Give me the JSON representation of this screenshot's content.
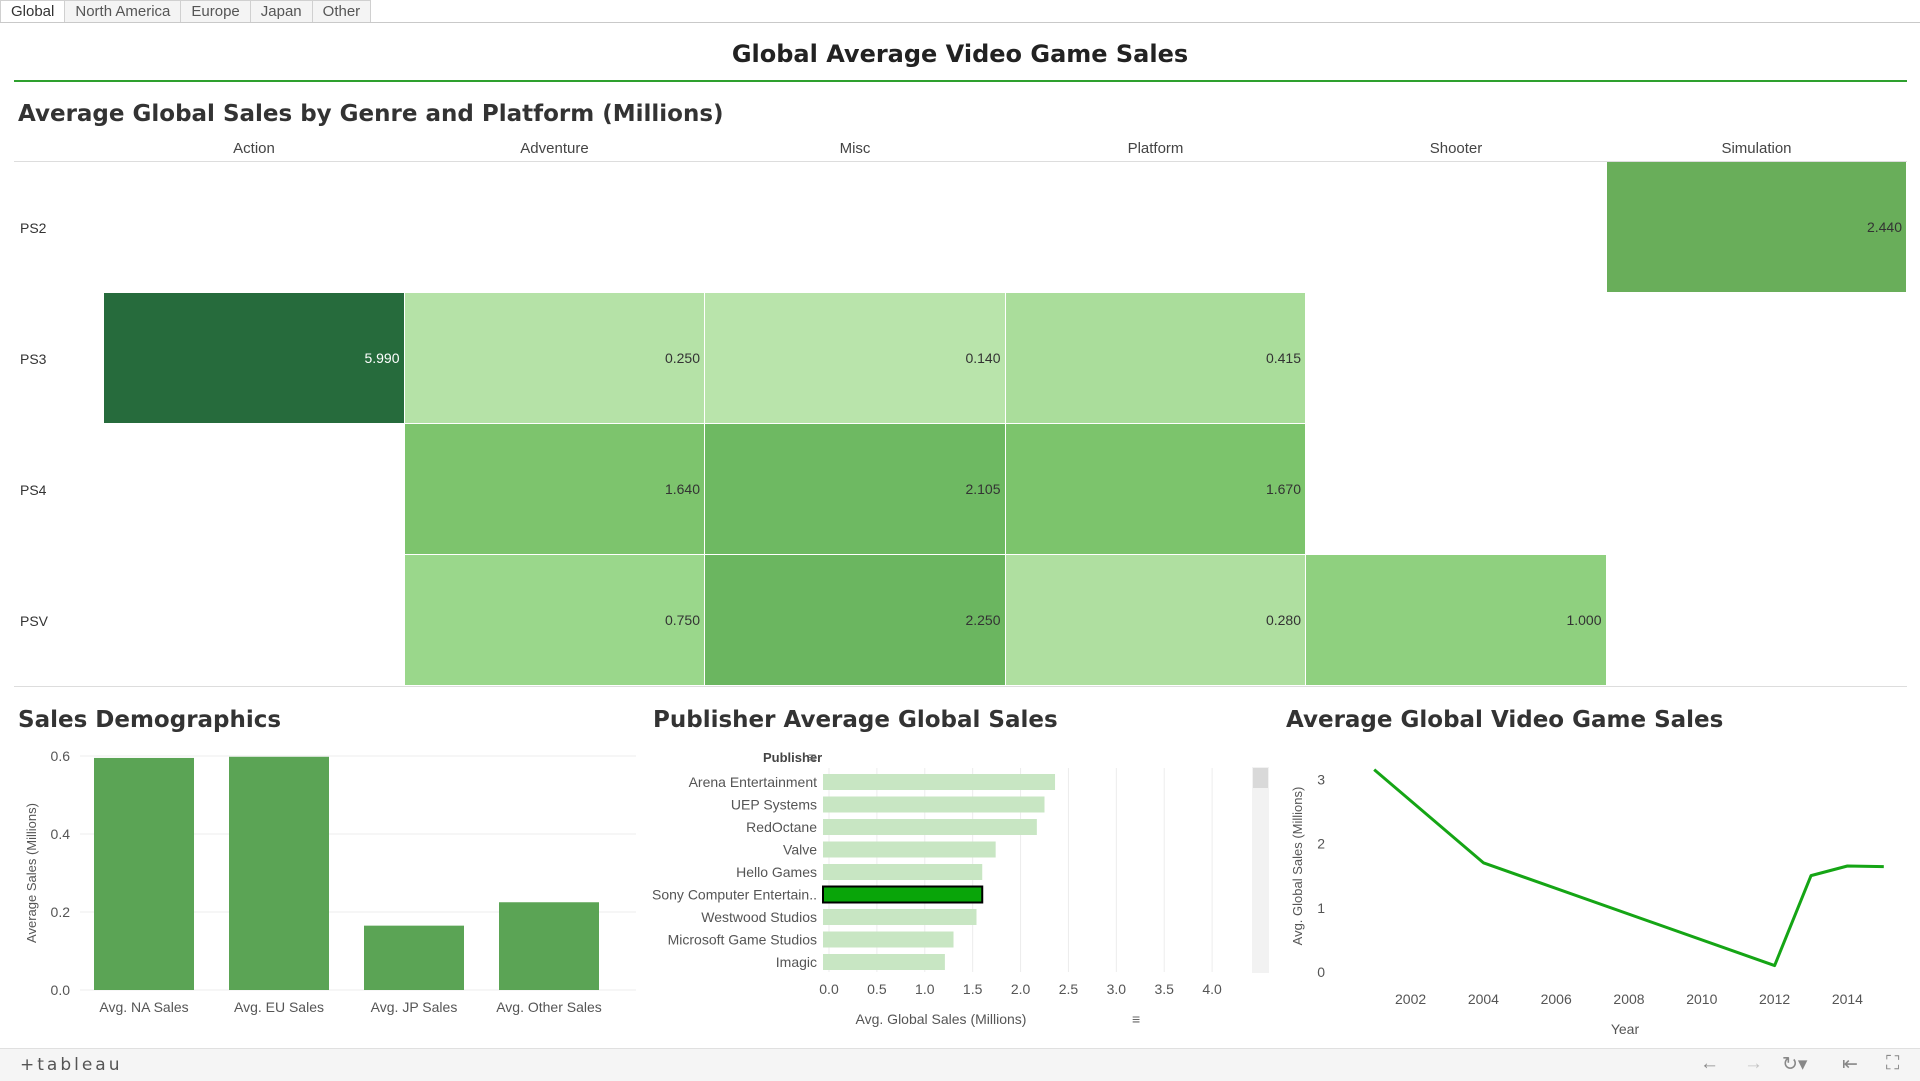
{
  "tabs": [
    {
      "label": "Global",
      "active": true
    },
    {
      "label": "North America",
      "active": false
    },
    {
      "label": "Europe",
      "active": false
    },
    {
      "label": "Japan",
      "active": false
    },
    {
      "label": "Other",
      "active": false
    }
  ],
  "dashboard_title": "Global Average Video Game Sales",
  "heatmap": {
    "title": "Average Global Sales by Genre and Platform (Millions)",
    "columns": [
      "Action",
      "Adventure",
      "Misc",
      "Platform",
      "Shooter",
      "Simulation"
    ],
    "rows": [
      "PS2",
      "PS3",
      "PS4",
      "PSV"
    ],
    "cells": [
      {
        "row": "PS2",
        "col": "Simulation",
        "value": "2.440",
        "color": "#69ae5a"
      },
      {
        "row": "PS3",
        "col": "Action",
        "value": "5.990",
        "color": "#266b3c"
      },
      {
        "row": "PS3",
        "col": "Adventure",
        "value": "0.250",
        "color": "#b5e2a7"
      },
      {
        "row": "PS3",
        "col": "Misc",
        "value": "0.140",
        "color": "#b9e4ab"
      },
      {
        "row": "PS3",
        "col": "Platform",
        "value": "0.415",
        "color": "#aadd9b"
      },
      {
        "row": "PS4",
        "col": "Adventure",
        "value": "1.640",
        "color": "#7dc46d"
      },
      {
        "row": "PS4",
        "col": "Misc",
        "value": "2.105",
        "color": "#6eb962"
      },
      {
        "row": "PS4",
        "col": "Platform",
        "value": "1.670",
        "color": "#7cc46c"
      },
      {
        "row": "PSV",
        "col": "Adventure",
        "value": "0.750",
        "color": "#9ad78b"
      },
      {
        "row": "PSV",
        "col": "Misc",
        "value": "2.250",
        "color": "#6bb660"
      },
      {
        "row": "PSV",
        "col": "Platform",
        "value": "0.280",
        "color": "#afdfa0"
      },
      {
        "row": "PSV",
        "col": "Shooter",
        "value": "1.000",
        "color": "#8fd07f"
      }
    ]
  },
  "demographics": {
    "title": "Sales Demographics"
  },
  "publisher": {
    "title": "Publisher Average Global Sales",
    "header": "Publisher"
  },
  "trend": {
    "title": "Average Global Video Game Sales"
  },
  "chart_data": [
    {
      "type": "bar",
      "title": "Sales Demographics",
      "categories": [
        "Avg. NA Sales",
        "Avg. EU Sales",
        "Avg. JP Sales",
        "Avg. Other Sales"
      ],
      "values": [
        0.595,
        0.598,
        0.165,
        0.225
      ],
      "ylabel": "Average Sales (Millions)",
      "xlabel": "",
      "ylim": [
        0,
        0.6
      ],
      "yticks": [
        "0.0",
        "0.2",
        "0.4",
        "0.6"
      ],
      "color": "#5ba455",
      "grid": true
    },
    {
      "type": "bar",
      "orientation": "horizontal",
      "title": "Publisher Average Global Sales",
      "categories": [
        "Arena Entertainment",
        "UEP Systems",
        "RedOctane",
        "Valve",
        "Hello Games",
        "Sony Computer Entertain..",
        "Westwood Studios",
        "Microsoft Game Studios",
        "Imagic"
      ],
      "values": [
        2.36,
        2.25,
        2.17,
        1.74,
        1.6,
        1.6,
        1.54,
        1.3,
        1.21
      ],
      "highlighted": "Sony Computer Entertain..",
      "xlabel": "Avg. Global Sales (Millions)",
      "ylabel": "Publisher",
      "xlim": [
        0,
        4.5
      ],
      "xticks": [
        "0.0",
        "0.5",
        "1.0",
        "1.5",
        "2.0",
        "2.5",
        "3.0",
        "3.5",
        "4.0"
      ],
      "color": "#c8e6c3",
      "highlight_color": "#09a509"
    },
    {
      "type": "line",
      "title": "Average Global Video Game Sales",
      "x": [
        2001,
        2004,
        2012,
        2013,
        2014,
        2015
      ],
      "y": [
        3.15,
        1.7,
        0.1,
        1.5,
        1.65,
        1.64
      ],
      "xlabel": "Year",
      "ylabel": "Avg. Global Sales (Millions)",
      "xticks": [
        "2002",
        "2004",
        "2006",
        "2008",
        "2010",
        "2012",
        "2014"
      ],
      "yticks": [
        "0",
        "1",
        "2",
        "3"
      ],
      "xlim": [
        2000.5,
        2015.5
      ],
      "ylim": [
        0,
        3.3
      ],
      "color": "#15a515"
    }
  ],
  "footer": {
    "brand": "+tableau",
    "icons": [
      "undo-icon",
      "redo-icon",
      "revert-icon",
      "reset-icon",
      "fullscreen-icon"
    ]
  }
}
